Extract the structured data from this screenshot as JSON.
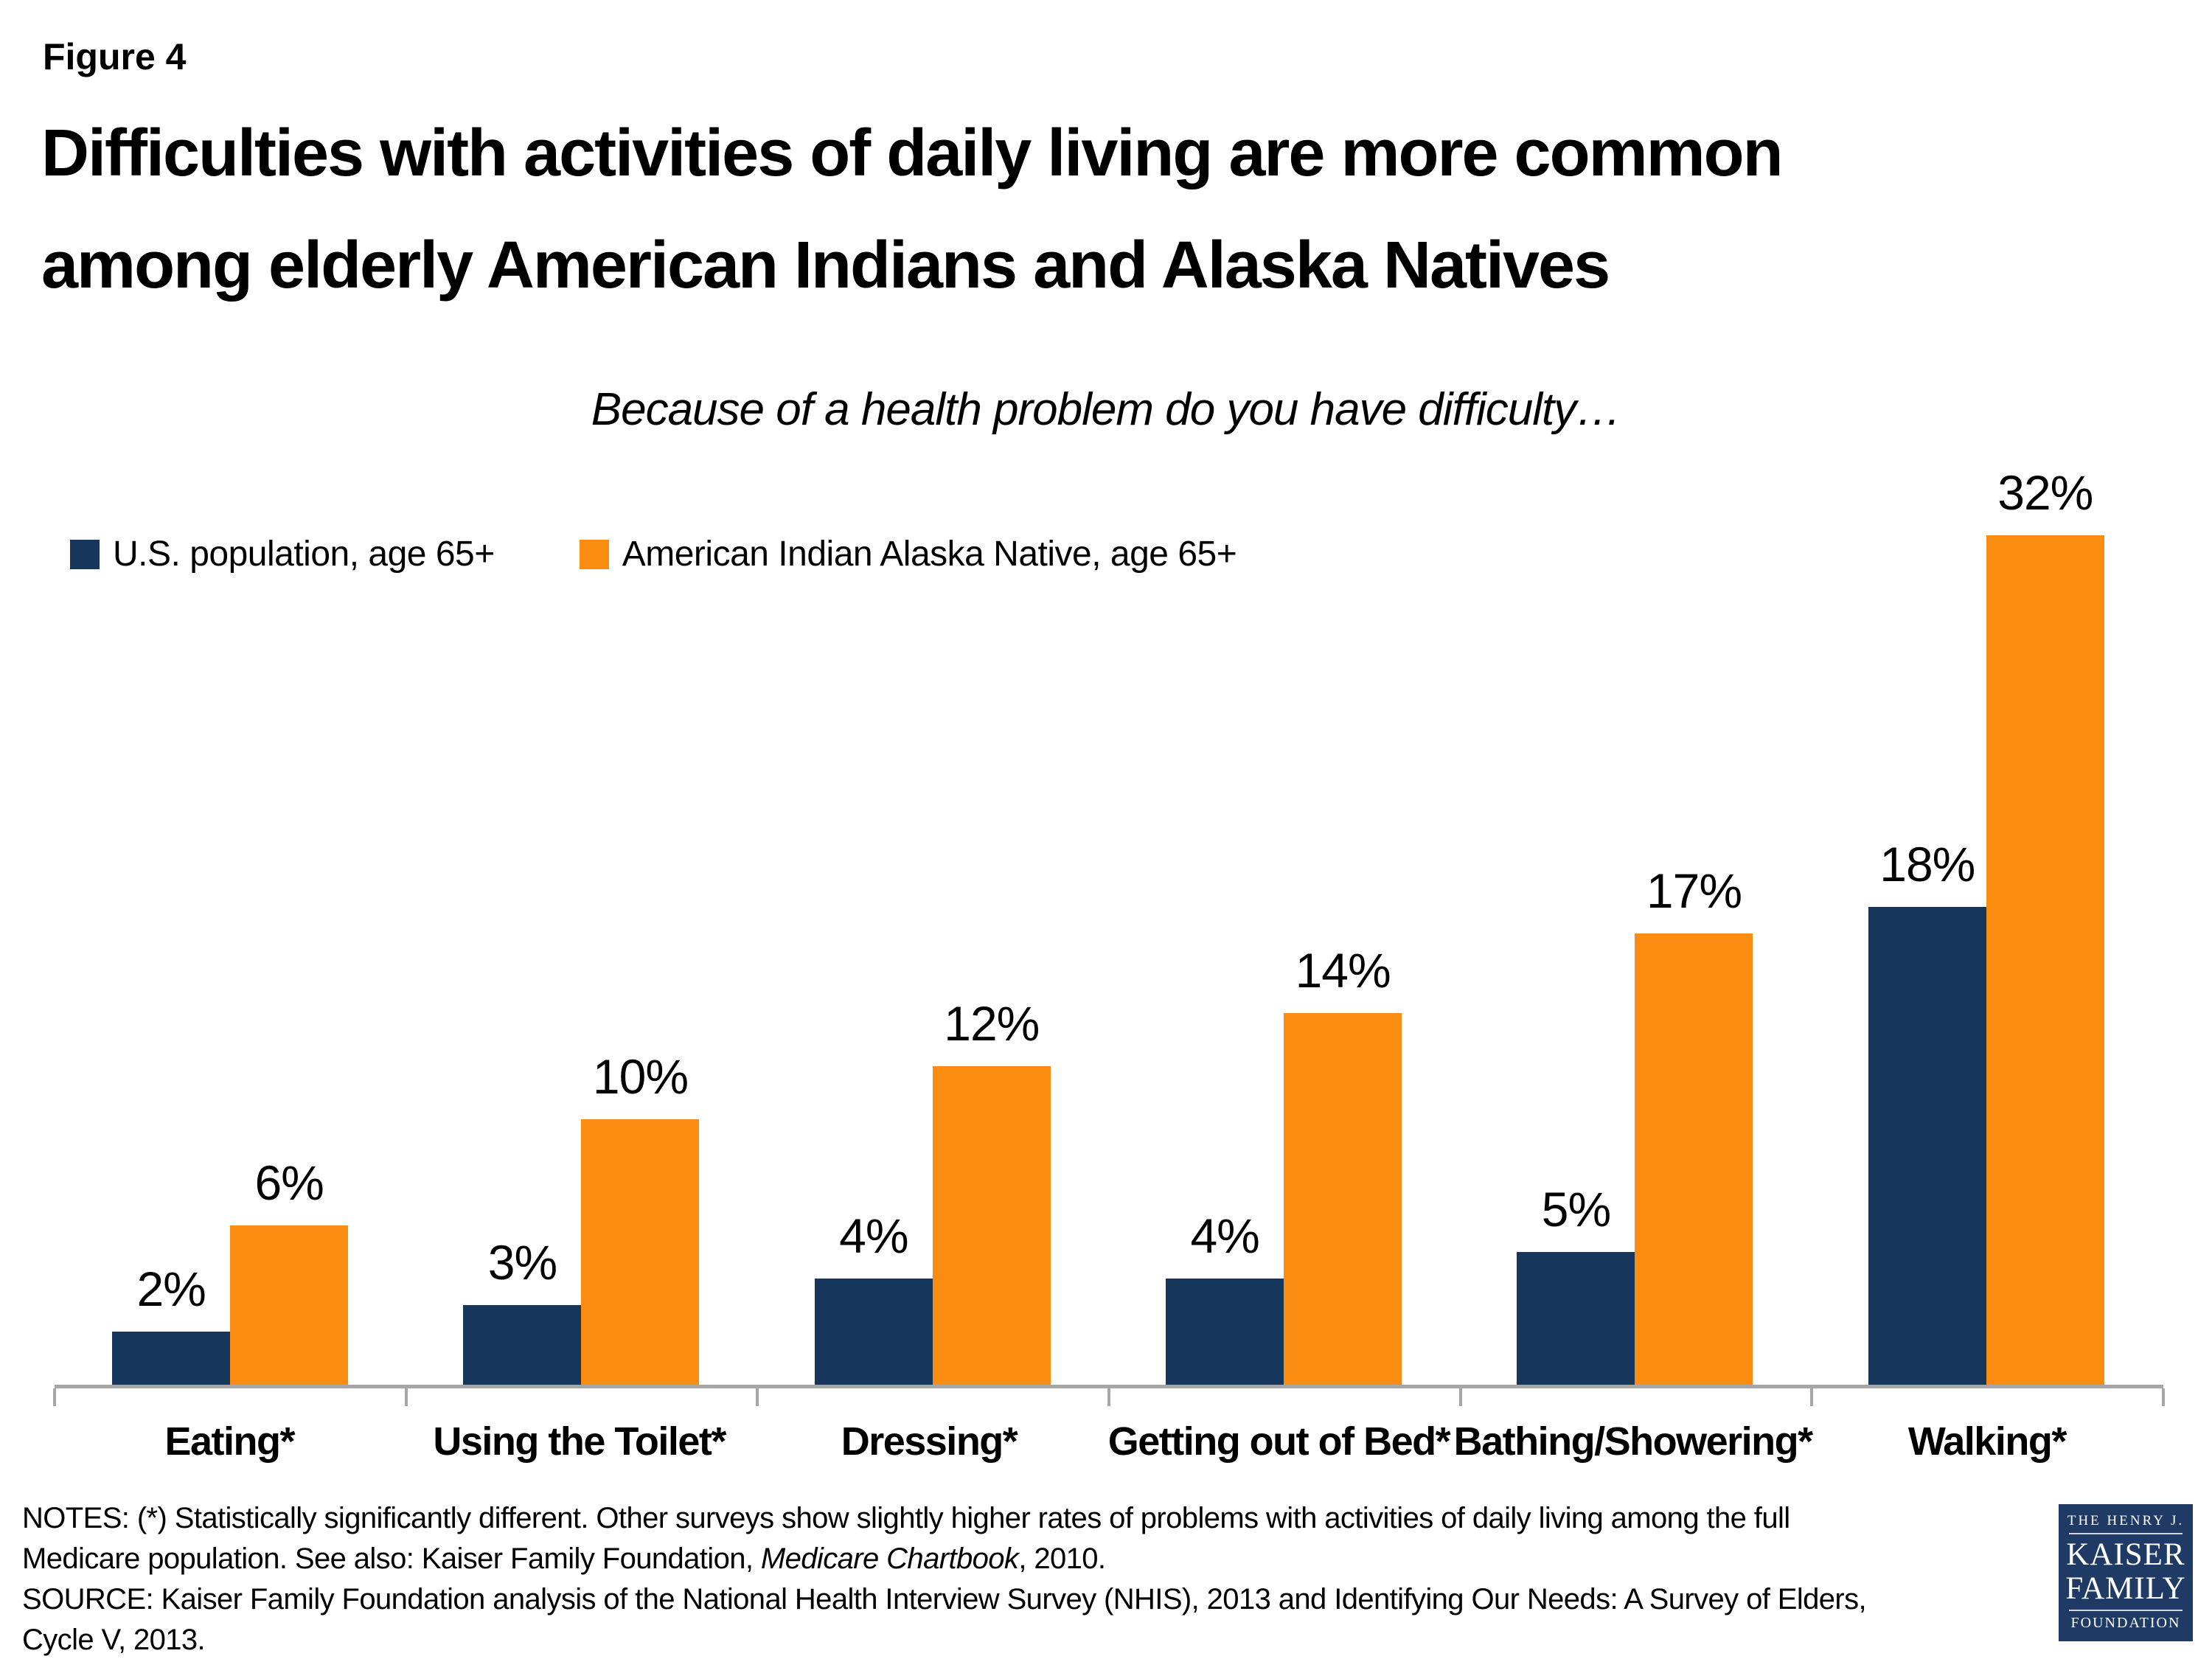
{
  "figure_label": "Figure 4",
  "title_line1": "Difficulties with activities of daily living are more common",
  "title_line2": "among elderly American Indians and Alaska Natives",
  "subtitle": "Because of a health problem do you have difficulty…",
  "colors": {
    "navy": "#16365C",
    "orange": "#F98C11",
    "axis": "#A6A6A6",
    "logo_bg": "#1F3A64"
  },
  "chart_data": {
    "type": "bar",
    "categories": [
      "Eating*",
      "Using the Toilet*",
      "Dressing*",
      "Getting out of Bed*",
      "Bathing/Showering*",
      "Walking*"
    ],
    "series": [
      {
        "name": "U.S. population, age 65+",
        "color": "#16365C",
        "values": [
          2,
          3,
          4,
          4,
          5,
          18
        ]
      },
      {
        "name": "American Indian Alaska Native, age 65+",
        "color": "#F98C11",
        "values": [
          6,
          10,
          12,
          14,
          17,
          32
        ]
      }
    ],
    "value_suffix": "%",
    "title": "Because of a health problem do you have difficulty…",
    "xlabel": "",
    "ylabel": "",
    "ylim": [
      0,
      34
    ],
    "grid": false,
    "data_labels": true,
    "legend_position": "top-left"
  },
  "notes": {
    "line1": "NOTES: (*) Statistically significantly different. Other surveys show slightly higher rates of problems with activities of daily living among the full",
    "line2_pre": "Medicare population.  See also: Kaiser Family Foundation, ",
    "line2_italic": "Medicare Chartbook",
    "line2_post": ", 2010.",
    "line3": "SOURCE: Kaiser Family Foundation analysis of the National Health Interview Survey (NHIS), 2013 and Identifying Our Needs: A Survey of Elders,",
    "line4": "Cycle V, 2013."
  },
  "logo": {
    "top": "THE HENRY J.",
    "name1": "KAISER",
    "name2": "FAMILY",
    "bottom": "FOUNDATION"
  }
}
